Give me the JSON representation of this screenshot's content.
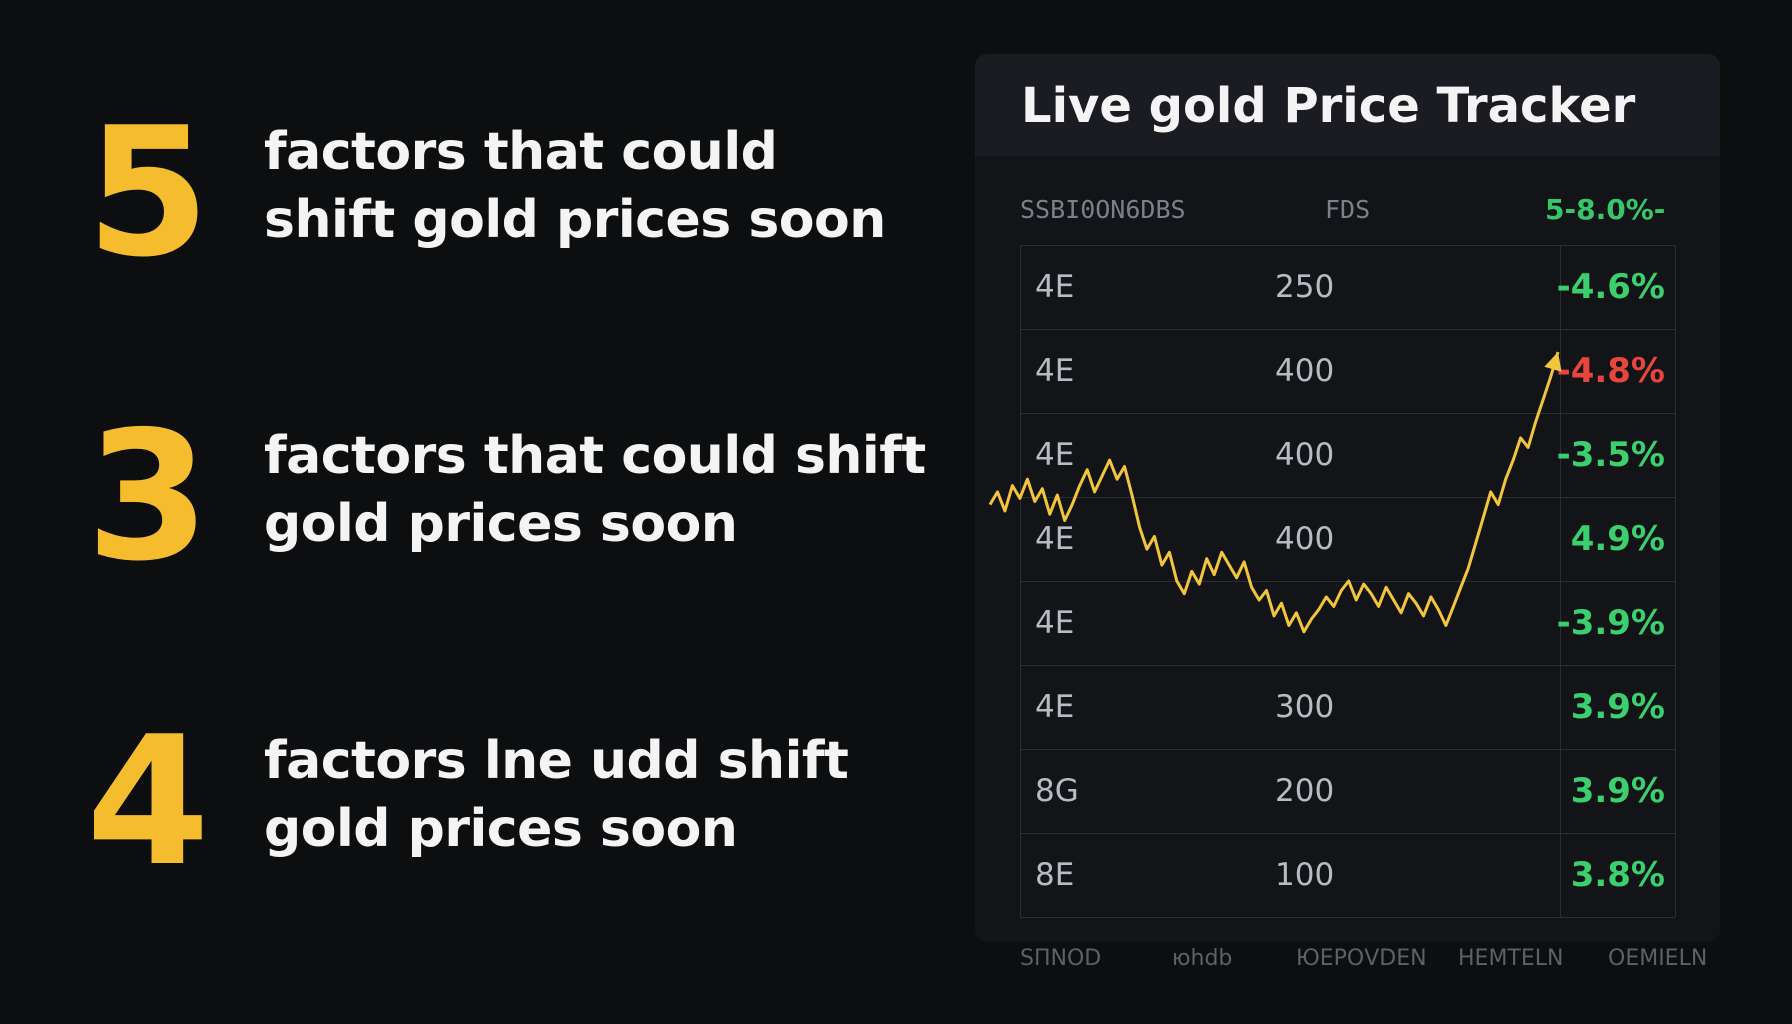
{
  "factors": [
    {
      "number": "5",
      "lines": [
        "factors that could",
        "shift gold prices soon"
      ]
    },
    {
      "number": "3",
      "lines": [
        "factors that could shift",
        "gold prices soon"
      ]
    },
    {
      "number": "4",
      "lines": [
        "factors lne udd shift",
        "gold prices soon"
      ]
    }
  ],
  "tracker": {
    "title": "Live gold Price Tracker",
    "columns": [
      "SSBI0ON6DBS",
      "FDS",
      "5-8.0%-"
    ],
    "rows": [
      {
        "label": "4E",
        "value": "250",
        "change": "-4.6%",
        "color": "#3ccf6e"
      },
      {
        "label": "4E",
        "value": "400",
        "change": "-4.8%",
        "color": "#e8453c"
      },
      {
        "label": "4E",
        "value": "400",
        "change": "-3.5%",
        "color": "#3ccf6e"
      },
      {
        "label": "4E",
        "value": "400",
        "change": "4.9%",
        "color": "#3ccf6e"
      },
      {
        "label": "4E",
        "value": "",
        "change": "-3.9%",
        "color": "#3ccf6e"
      },
      {
        "label": "4E",
        "value": "300",
        "change": "3.9%",
        "color": "#3ccf6e"
      },
      {
        "label": "8G",
        "value": "200",
        "change": "3.9%",
        "color": "#3ccf6e"
      },
      {
        "label": "8E",
        "value": "100",
        "change": "3.8%",
        "color": "#3ccf6e"
      }
    ],
    "footer": [
      "SПNOD",
      "юhdb",
      "ЮЕРОVDEN",
      "НЕМTELN",
      "ОЕМIELN"
    ],
    "line_color": "#f2c53d"
  },
  "chart_data": {
    "type": "line",
    "title": "",
    "xlabel": "",
    "ylabel": "",
    "series": [
      {
        "values": [
          0.52,
          0.56,
          0.5,
          0.58,
          0.54,
          0.6,
          0.53,
          0.57,
          0.49,
          0.55,
          0.47,
          0.52,
          0.58,
          0.63,
          0.56,
          0.61,
          0.66,
          0.6,
          0.64,
          0.55,
          0.45,
          0.38,
          0.42,
          0.33,
          0.37,
          0.28,
          0.24,
          0.31,
          0.27,
          0.35,
          0.3,
          0.37,
          0.33,
          0.29,
          0.34,
          0.26,
          0.22,
          0.25,
          0.17,
          0.21,
          0.14,
          0.18,
          0.12,
          0.16,
          0.19,
          0.23,
          0.2,
          0.25,
          0.28,
          0.22,
          0.27,
          0.24,
          0.2,
          0.26,
          0.22,
          0.18,
          0.24,
          0.21,
          0.17,
          0.23,
          0.19,
          0.14,
          0.2,
          0.26,
          0.32,
          0.4,
          0.48,
          0.56,
          0.52,
          0.6,
          0.66,
          0.73,
          0.7,
          0.78,
          0.85,
          0.92,
          1.0
        ]
      }
    ],
    "end_marker": "arrow"
  }
}
